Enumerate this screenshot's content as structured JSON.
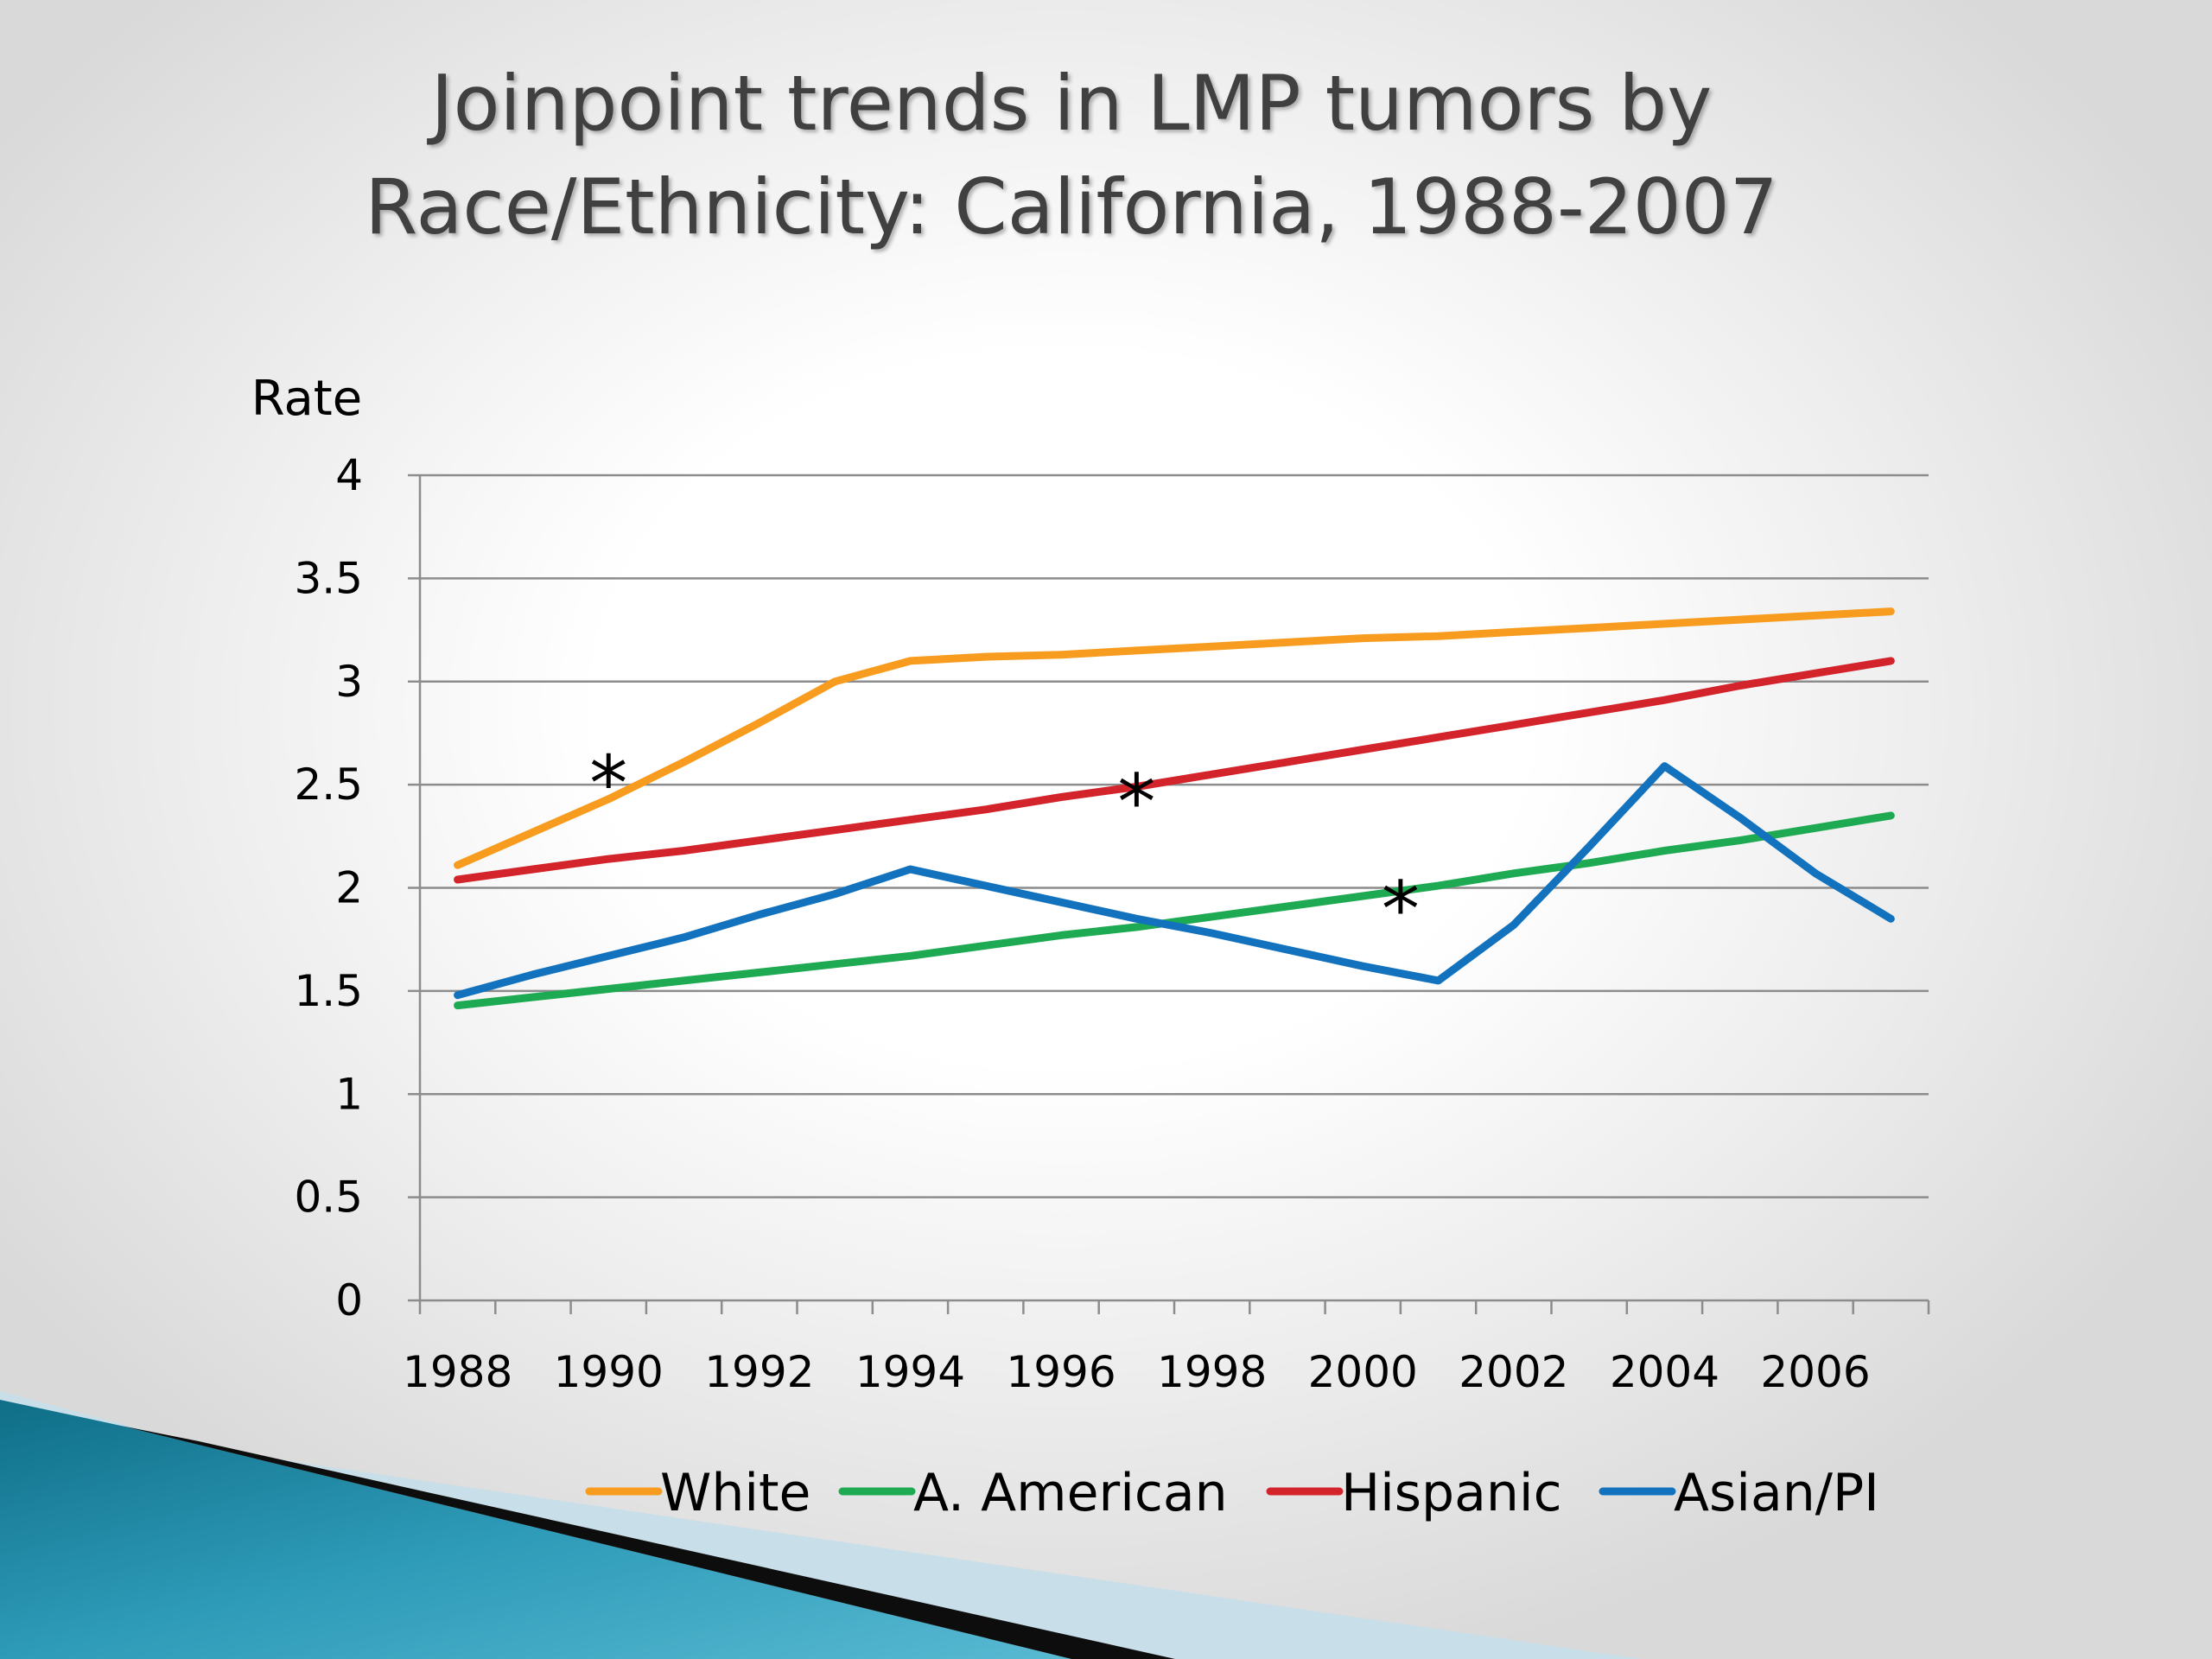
{
  "title": {
    "line1": "Joinpoint trends in LMP tumors by",
    "line2": "Race/Ethnicity: California, 1988-2007"
  },
  "chart_data": {
    "type": "line",
    "ylabel": "Rate",
    "xlabel": "",
    "x": [
      1988,
      1989,
      1990,
      1991,
      1992,
      1993,
      1994,
      1995,
      1996,
      1997,
      1998,
      1999,
      2000,
      2001,
      2002,
      2003,
      2004,
      2005,
      2006,
      2007
    ],
    "x_tick_labels": [
      "1988",
      "1990",
      "1992",
      "1994",
      "1996",
      "1998",
      "2000",
      "2002",
      "2004",
      "2006"
    ],
    "x_tick_values": [
      1988,
      1990,
      1992,
      1994,
      1996,
      1998,
      2000,
      2002,
      2004,
      2006
    ],
    "y_tick_labels": [
      "0",
      "0.5",
      "1",
      "1.5",
      "2",
      "2.5",
      "3",
      "3.5",
      "4"
    ],
    "y_tick_values": [
      0,
      0.5,
      1,
      1.5,
      2,
      2.5,
      3,
      3.5,
      4
    ],
    "ylim": [
      0,
      4
    ],
    "xlim": [
      1987.5,
      2007.5
    ],
    "grid": true,
    "legend_position": "bottom",
    "series": [
      {
        "name": "White",
        "color": "#F79C1E",
        "values": [
          2.11,
          2.27,
          2.43,
          2.61,
          2.8,
          3.0,
          3.1,
          3.12,
          3.13,
          3.15,
          3.17,
          3.19,
          3.21,
          3.22,
          3.24,
          3.26,
          3.28,
          3.3,
          3.32,
          3.34
        ]
      },
      {
        "name": "A. American",
        "color": "#1EAA52",
        "values": [
          1.43,
          1.47,
          1.51,
          1.55,
          1.59,
          1.63,
          1.67,
          1.72,
          1.77,
          1.81,
          1.86,
          1.91,
          1.96,
          2.01,
          2.07,
          2.12,
          2.18,
          2.23,
          2.29,
          2.35
        ]
      },
      {
        "name": "Hispanic",
        "color": "#D3242C",
        "values": [
          2.04,
          2.09,
          2.14,
          2.18,
          2.23,
          2.28,
          2.33,
          2.38,
          2.44,
          2.49,
          2.55,
          2.61,
          2.67,
          2.73,
          2.79,
          2.85,
          2.91,
          2.98,
          3.04,
          3.1
        ]
      },
      {
        "name": "Asian/PI",
        "color": "#1272BD",
        "values": [
          1.48,
          1.58,
          1.67,
          1.76,
          1.87,
          1.97,
          2.09,
          2.01,
          1.93,
          1.85,
          1.78,
          1.7,
          1.62,
          1.55,
          1.82,
          2.2,
          2.59,
          2.34,
          2.07,
          1.85
        ]
      }
    ],
    "annotations": [
      {
        "text": "*",
        "x": 1990,
        "y": 2.62
      },
      {
        "text": "*",
        "x": 1997,
        "y": 2.53
      },
      {
        "text": "*",
        "x": 2000.5,
        "y": 2.01
      }
    ]
  }
}
